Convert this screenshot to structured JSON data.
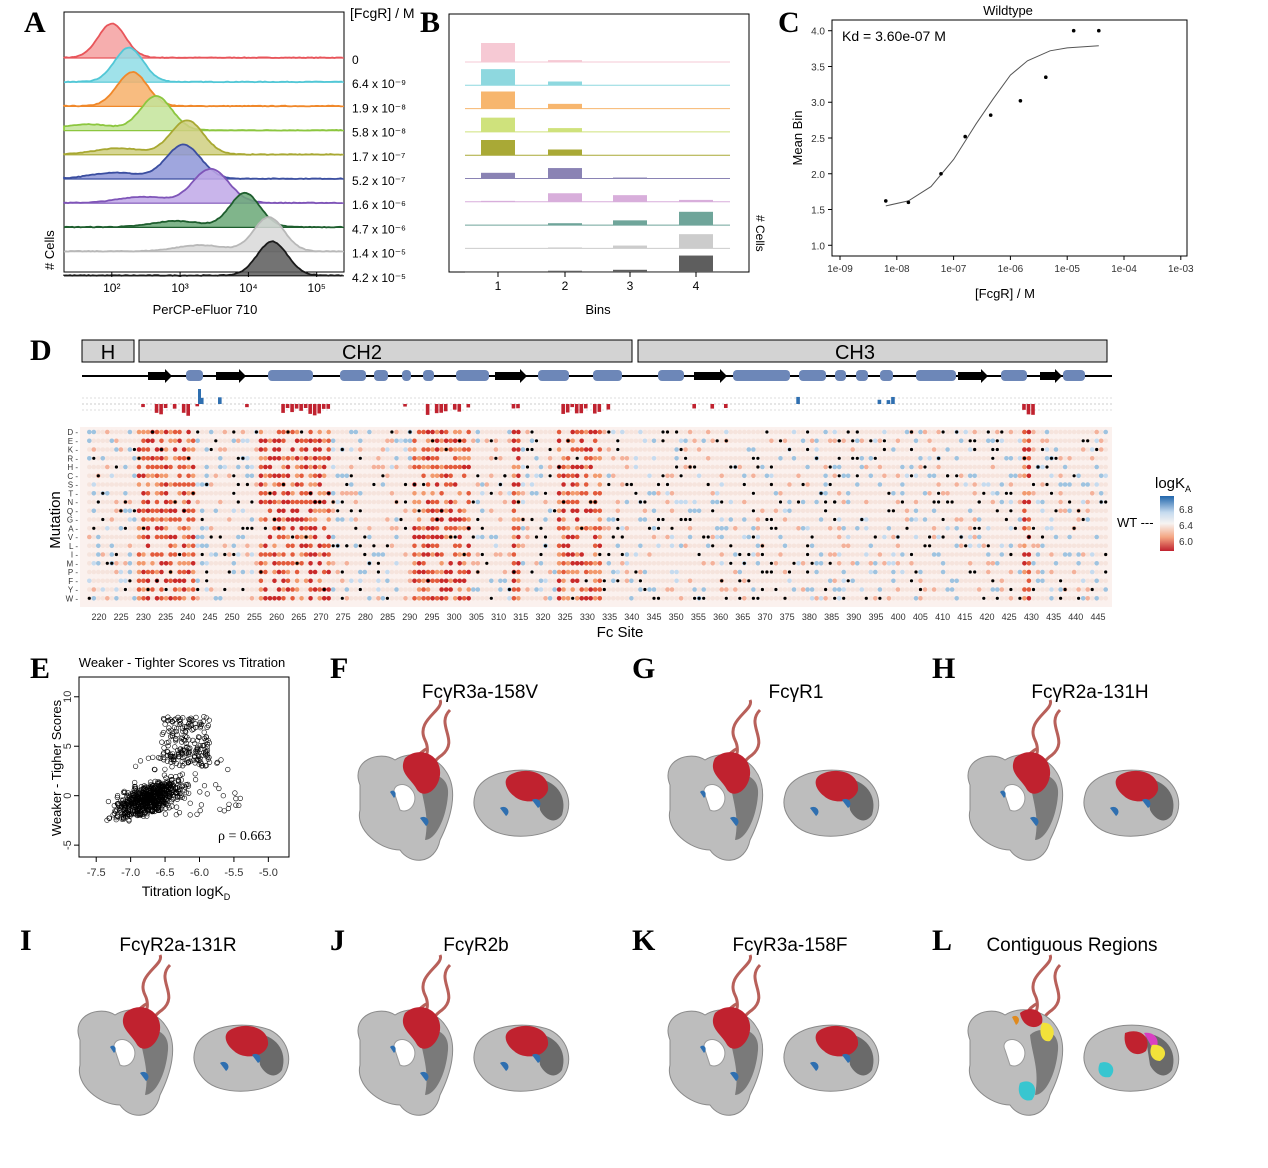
{
  "panels": {
    "A": "A",
    "B": "B",
    "C": "C",
    "D": "D",
    "E": "E",
    "F": "F",
    "G": "G",
    "H": "H",
    "I": "I",
    "J": "J",
    "K": "K",
    "L": "L"
  },
  "panel_a": {
    "legend_title": "[FcgR] / M",
    "xlabel": "PerCP-eFluor 710",
    "ylabel": "# Cells",
    "xticks": [
      "10²",
      "10³",
      "10⁴",
      "10⁵"
    ],
    "concentrations": [
      "0",
      "6.4 x 10⁻⁹",
      "1.9 x 10⁻⁸",
      "5.8 x 10⁻⁸",
      "1.7 x 10⁻⁷",
      "5.2 x 10⁻⁷",
      "1.6 x 10⁻⁶",
      "4.7 x 10⁻⁶",
      "1.4 x 10⁻⁵",
      "4.2 x 10⁻⁵"
    ],
    "colors": [
      "#e8555a",
      "#52c7d6",
      "#f0882a",
      "#8cc63f",
      "#a8a832",
      "#3b4ea0",
      "#7f55b8",
      "#1e5e2e",
      "#b8b8b8",
      "#1a1a1a"
    ],
    "fills": [
      "#f4a0a0",
      "#8fdde6",
      "#f7b06a",
      "#c3e49a",
      "#cfcf80",
      "#8e96d8",
      "#c0a8e8",
      "#6aa877",
      "#d8d8d8",
      "#5a5a5a"
    ],
    "peaks_log10": [
      2.0,
      2.25,
      2.3,
      2.65,
      3.1,
      3.05,
      3.45,
      3.95,
      4.3,
      4.35
    ]
  },
  "panel_b": {
    "xlabel": "Bins",
    "ylabel": "# Cells",
    "bins": [
      "1",
      "2",
      "3",
      "4"
    ],
    "colors": [
      "#f6c9d4",
      "#8ed8df",
      "#f7b66e",
      "#cfe27c",
      "#a9a936",
      "#8a83b4",
      "#d8aedb",
      "#6fa59a",
      "#cccccc",
      "#5e5e5e"
    ],
    "fractions": [
      [
        1.0,
        0.1,
        0.0,
        0.0
      ],
      [
        0.85,
        0.2,
        0.0,
        0.0
      ],
      [
        0.9,
        0.25,
        0.0,
        0.0
      ],
      [
        0.75,
        0.2,
        0.0,
        0.0
      ],
      [
        0.8,
        0.3,
        0.0,
        0.0
      ],
      [
        0.3,
        0.55,
        0.05,
        0.0
      ],
      [
        0.05,
        0.45,
        0.35,
        0.1
      ],
      [
        0.0,
        0.1,
        0.25,
        0.7
      ],
      [
        0.0,
        0.05,
        0.15,
        0.75
      ],
      [
        0.0,
        0.05,
        0.1,
        0.85
      ]
    ]
  },
  "chart_data": {
    "type": "scatter",
    "title": "Wildtype",
    "annotation": "Kd = 3.60e-07 M",
    "xlabel": "[FcgR] / M",
    "ylabel": "Mean Bin",
    "xscale": "log",
    "xlim": [
      1e-09,
      0.001
    ],
    "ylim": [
      0.85,
      4.15
    ],
    "xtick_labels": [
      "1e-09",
      "1e-08",
      "1e-07",
      "1e-06",
      "1e-05",
      "1e-04",
      "1e-03"
    ],
    "ytick_labels": [
      "1.0",
      "1.5",
      "2.0",
      "2.5",
      "3.0",
      "3.5",
      "4.0"
    ],
    "yticks": [
      1.0,
      1.5,
      2.0,
      2.5,
      3.0,
      3.5,
      4.0
    ],
    "points_x": [
      6.4e-09,
      1.6e-08,
      6e-08,
      1.6e-07,
      4.5e-07,
      1.5e-06,
      4.2e-06,
      1.3e-05,
      3.6e-05
    ],
    "points_y": [
      1.62,
      1.6,
      2.0,
      2.52,
      2.82,
      3.02,
      3.35,
      4.0,
      4.0
    ],
    "fit_x": [
      6.4e-09,
      1.6e-08,
      4e-08,
      1e-07,
      2.5e-07,
      5e-07,
      1e-06,
      2e-06,
      5e-06,
      1e-05,
      3.6e-05
    ],
    "fit_y": [
      1.55,
      1.62,
      1.82,
      2.2,
      2.7,
      3.05,
      3.38,
      3.58,
      3.72,
      3.76,
      3.79
    ]
  },
  "panel_d": {
    "domains": [
      "H",
      "CH2",
      "CH3"
    ],
    "ylabel": "Mutation",
    "xlabel": "Fc Site",
    "mutations": [
      "D",
      "E",
      "K",
      "R",
      "H",
      "C",
      "S",
      "T",
      "N",
      "Q",
      "G",
      "A",
      "V",
      "L",
      "I",
      "M",
      "P",
      "F",
      "Y",
      "W"
    ],
    "sites": [
      "220",
      "225",
      "230",
      "235",
      "240",
      "245",
      "250",
      "255",
      "260",
      "265",
      "270",
      "275",
      "280",
      "285",
      "290",
      "295",
      "300",
      "305",
      "310",
      "315",
      "320",
      "325",
      "330",
      "335",
      "340",
      "345",
      "350",
      "355",
      "360",
      "365",
      "370",
      "375",
      "380",
      "385",
      "390",
      "395",
      "400",
      "405",
      "410",
      "415",
      "420",
      "425",
      "430",
      "435",
      "440",
      "445"
    ],
    "legend_title": "logK",
    "legend_sub": "A",
    "legend_ticks": [
      "6.8",
      "6.4",
      "6.0"
    ],
    "wt_label": "WT ---"
  },
  "panel_e": {
    "title": "Weaker - Tighter Scores vs Titration",
    "ylabel": "Weaker - Tigher Scores",
    "xlabel_main": "Titration logK",
    "xlabel_sub": "D",
    "xticks": [
      "-7.5",
      "-7.0",
      "-6.5",
      "-6.0",
      "-5.5",
      "-5.0"
    ],
    "yticks": [
      "10",
      "5",
      "0",
      "-5"
    ],
    "rho": "ρ = 0.663"
  },
  "structures": [
    {
      "label": "F",
      "title": "FcγR3a-158V"
    },
    {
      "label": "G",
      "title": "FcγR1"
    },
    {
      "label": "H",
      "title": "FcγR2a-131H"
    },
    {
      "label": "I",
      "title": "FcγR2a-131R"
    },
    {
      "label": "J",
      "title": "FcγR2b"
    },
    {
      "label": "K",
      "title": "FcγR3a-158F"
    },
    {
      "label": "L",
      "title": "Contiguous Regions"
    }
  ],
  "colors": {
    "red": "#c0222f",
    "blue": "#2f6fb0",
    "grey": "#a8a8a8",
    "dark": "#6a6a6a",
    "track_blue": "#6d87b8"
  }
}
